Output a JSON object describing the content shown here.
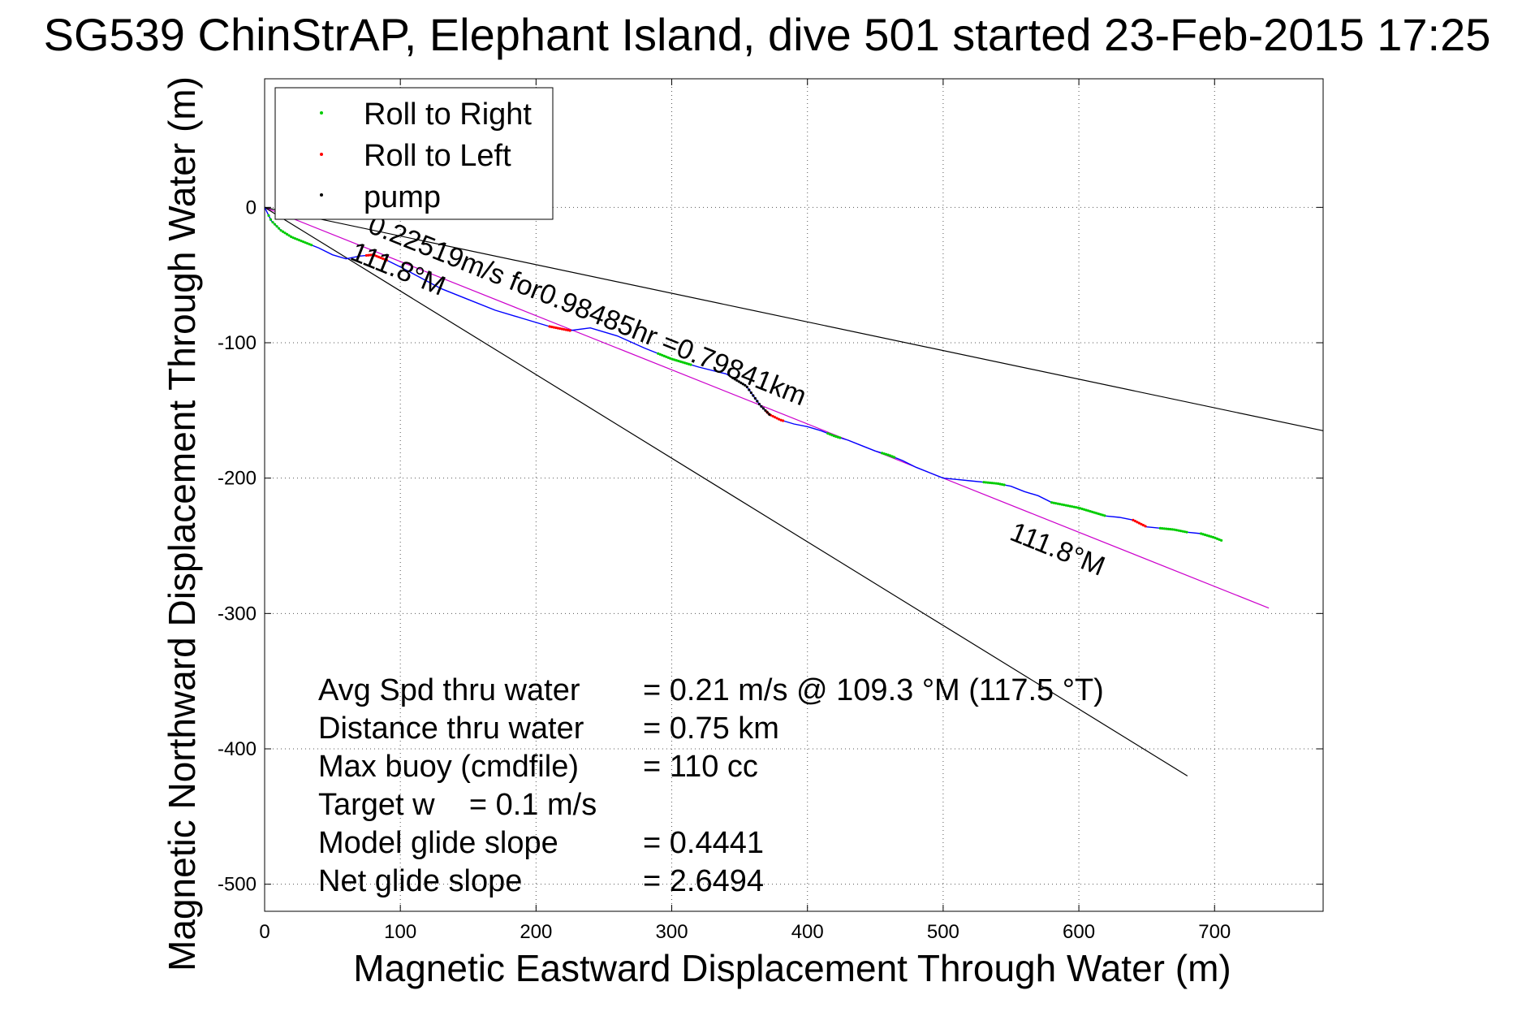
{
  "chart_data": {
    "type": "line",
    "title": "SG539 ChinStrAP, Elephant Island, dive 501 started 23-Feb-2015 17:25",
    "xlabel": "Magnetic Eastward Displacement Through Water (m)",
    "ylabel": "Magnetic Northward Displacement Through Water (m)",
    "xlim": [
      0,
      780
    ],
    "ylim": [
      -520,
      95
    ],
    "xticks": [
      0,
      100,
      200,
      300,
      400,
      500,
      600,
      700
    ],
    "yticks": [
      0,
      -100,
      -200,
      -300,
      -400,
      -500
    ],
    "grid": true,
    "legend": {
      "position": "top-left",
      "entries": [
        {
          "label": "Roll to Right",
          "color": "#00cc00"
        },
        {
          "label": "Roll to Left",
          "color": "#ff0000"
        },
        {
          "label": "pump",
          "color": "#000000"
        }
      ]
    },
    "series": [
      {
        "key": "track",
        "color": "#0000ff",
        "x": [
          0,
          5,
          12,
          20,
          30,
          40,
          50,
          60,
          70,
          80,
          90,
          100,
          115,
          130,
          150,
          170,
          190,
          210,
          225,
          240,
          260,
          280,
          300,
          320,
          340,
          355,
          365,
          372,
          380,
          390,
          400,
          410,
          420,
          430,
          440,
          450,
          460,
          470,
          480,
          490,
          500,
          510,
          520,
          530,
          540,
          550,
          560,
          570,
          580,
          590,
          600,
          610,
          620,
          630,
          640,
          650,
          660,
          670,
          680,
          690,
          700,
          705
        ],
        "y": [
          0,
          -10,
          -17,
          -22,
          -26,
          -30,
          -35,
          -38,
          -36,
          -35,
          -39,
          -44,
          -52,
          -60,
          -68,
          -76,
          -82,
          -88,
          -91,
          -89,
          -95,
          -104,
          -112,
          -118,
          -123,
          -132,
          -146,
          -153,
          -157,
          -160,
          -162,
          -165,
          -169,
          -172,
          -176,
          -180,
          -183,
          -187,
          -192,
          -196,
          -200,
          -201,
          -202,
          -203,
          -204,
          -206,
          -210,
          -213,
          -218,
          -220,
          -222,
          -225,
          -228,
          -229,
          -231,
          -236,
          -237,
          -238,
          -240,
          -241,
          -244,
          -246
        ]
      }
    ],
    "segments": [
      {
        "key": "heading-fit",
        "color": "#cc00cc",
        "from": [
          0,
          0
        ],
        "to": [
          740,
          -296
        ]
      },
      {
        "key": "bound-1",
        "color": "#000000",
        "from": [
          0,
          0
        ],
        "to": [
          780,
          -165
        ]
      },
      {
        "key": "bound-2",
        "color": "#000000",
        "from": [
          0,
          0
        ],
        "to": [
          680,
          -420
        ]
      }
    ],
    "roll_right_x_ranges": [
      [
        3,
        35
      ],
      [
        290,
        315
      ],
      [
        415,
        425
      ],
      [
        455,
        465
      ],
      [
        530,
        545
      ],
      [
        580,
        620
      ],
      [
        660,
        680
      ],
      [
        690,
        705
      ]
    ],
    "roll_left_x_ranges": [
      [
        75,
        90
      ],
      [
        210,
        225
      ],
      [
        370,
        382
      ],
      [
        640,
        650
      ]
    ],
    "pump_x_ranges": [
      [
        345,
        372
      ]
    ],
    "annotations": [
      {
        "key": "speed",
        "text": "0.22519m/s for0.98485hr =0.79841km",
        "at": [
          75,
          -18
        ],
        "rotate_deg": 21.8
      },
      {
        "key": "heading-upper",
        "text": "111.8°M",
        "at": [
          62,
          -38
        ],
        "rotate_deg": 22
      },
      {
        "key": "heading-lower",
        "text": "111.8°M",
        "at": [
          548,
          -245
        ],
        "rotate_deg": 22
      }
    ],
    "stats": [
      {
        "label": "Avg Spd thru water",
        "value": "=  0.21 m/s @ 109.3 °M (117.5 °T)"
      },
      {
        "label": "Distance thru water",
        "value": "=  0.75 km"
      },
      {
        "label": "Max buoy (cmdfile)",
        "value": "= 110 cc"
      },
      {
        "label": "Target w    = 0.1 m/s",
        "value": ""
      },
      {
        "label": "Model glide slope",
        "value": "= 0.4441"
      },
      {
        "label": "Net glide slope",
        "value": "= 2.6494"
      }
    ]
  }
}
